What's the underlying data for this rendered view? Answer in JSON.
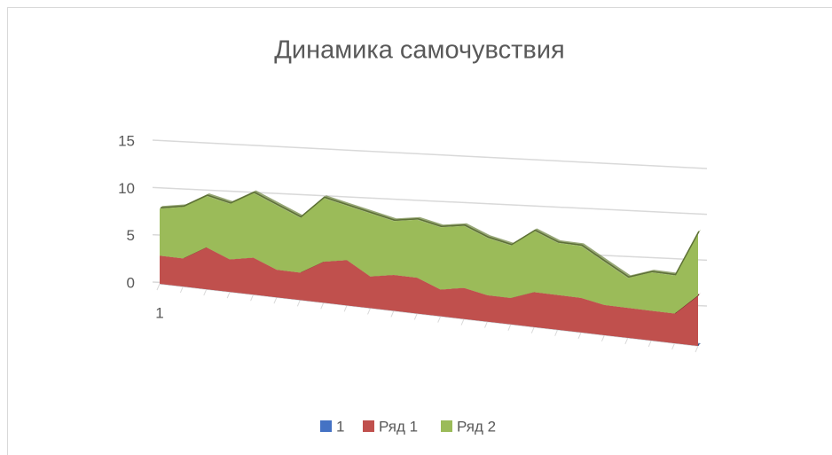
{
  "chart_data": {
    "type": "area3d",
    "title": "Динамика самочувствия",
    "categories": [
      "1",
      null,
      null,
      null,
      null,
      null,
      null,
      null,
      null,
      null,
      null,
      null,
      null,
      null,
      null,
      null,
      null,
      null,
      null,
      null,
      null,
      null,
      null,
      null
    ],
    "series": [
      {
        "name": "1",
        "color": "#4472c4",
        "values": [
          0,
          0,
          0,
          0,
          0,
          0,
          0,
          0,
          0,
          0,
          0,
          0,
          0,
          0,
          0,
          0,
          0,
          0,
          0,
          0,
          0,
          0,
          0,
          0
        ]
      },
      {
        "name": "Ряд 1",
        "color": "#c0504d",
        "values": [
          3,
          3,
          4.5,
          3.5,
          4,
          3,
          3,
          4.5,
          5,
          3.5,
          4,
          4,
          3,
          3.5,
          3,
          3,
          4,
          4,
          4,
          3.5,
          3.5,
          3.5,
          3.5,
          6
        ]
      },
      {
        "name": "Ряд 2",
        "color": "#9bbb59",
        "values": [
          5,
          5.5,
          5.5,
          6,
          7,
          7,
          6,
          7,
          6,
          7,
          6,
          6.5,
          7,
          7,
          6.5,
          6,
          7,
          6,
          6,
          5,
          3.5,
          4.5,
          4.5,
          7.5
        ]
      }
    ],
    "stacked": true,
    "ylim": [
      0,
      15
    ],
    "yticks": [
      0,
      5,
      10,
      15
    ],
    "grid": true,
    "legend": "bottom"
  }
}
